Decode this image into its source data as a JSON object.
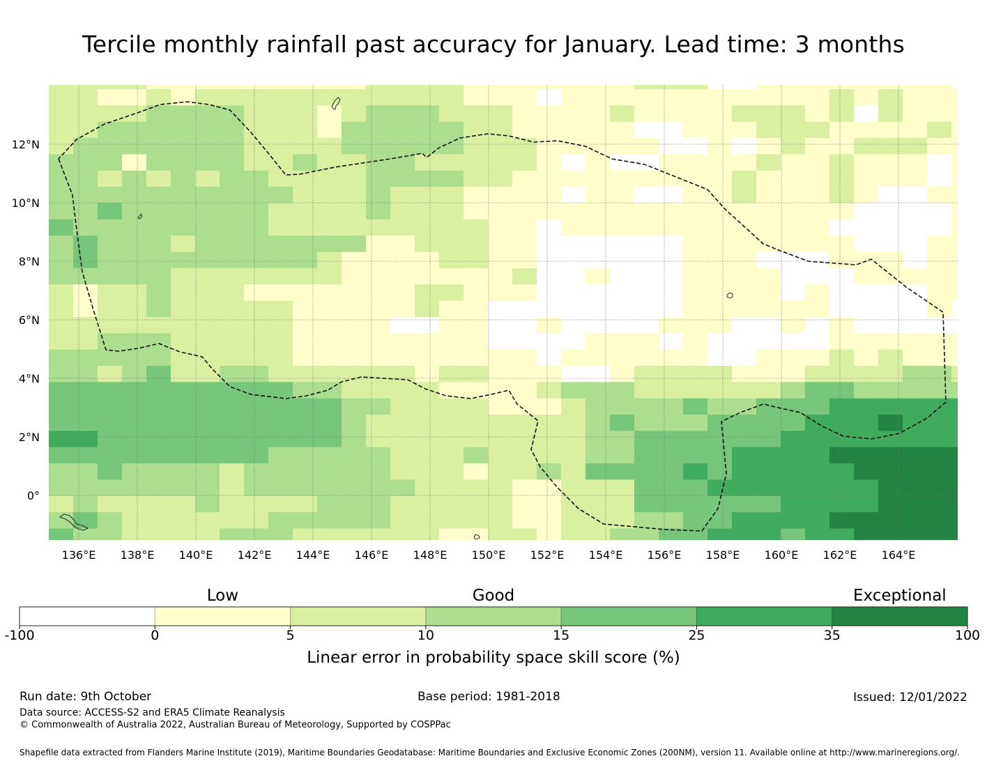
{
  "title": "Tercile monthly rainfall past accuracy for January. Lead time: 3 months",
  "chart_data": {
    "type": "heatmap",
    "title": "Tercile monthly rainfall past accuracy for January. Lead time: 3 months",
    "xlabel": "",
    "ylabel": "",
    "x_ticks": [
      "136°E",
      "138°E",
      "140°E",
      "142°E",
      "144°E",
      "146°E",
      "148°E",
      "150°E",
      "152°E",
      "154°E",
      "156°E",
      "158°E",
      "160°E",
      "162°E",
      "164°E"
    ],
    "y_ticks": [
      "12°N",
      "10°N",
      "8°N",
      "6°N",
      "4°N",
      "2°N",
      "0°"
    ],
    "lon_range": [
      135.0,
      166.0
    ],
    "lat_range": [
      -1.5,
      14.0
    ],
    "colorbar": {
      "title": "Linear error in probability space skill score (%)",
      "boundaries": [
        "-100",
        "0",
        "5",
        "10",
        "15",
        "25",
        "35",
        "100"
      ],
      "colors": [
        "#ffffff",
        "#ffffcc",
        "#d9f0a3",
        "#addd8e",
        "#78c679",
        "#41ab5d",
        "#238443"
      ],
      "category_labels": [
        {
          "text": "Low",
          "at_bin": 1
        },
        {
          "text": "Good",
          "at_bin": 3
        },
        {
          "text": "Exceptional",
          "at_bin": 6
        }
      ]
    },
    "grid_note": "Values are colorbar bin indices 0-6 (0: <0, 1: 0-5, 2: 5-10, 3: 10-15, 4: 15-25, 5: 25-35, 6: 35-100); rows top (north) to bottom (south), columns west to east",
    "grid": [
      "22221111111112222111111122200111111110",
      "22112122222222222111011111111111212111",
      "22223333222123332221111211112221202111",
      "22333333222133333221111100111222111121",
      "23333333222233333222111110010121122211",
      "33313333223223322222101001111211211101",
      "33232323322223333221111111112111211101",
      "33333333332223222111101100112111210011",
      "33433333322223222111111111111111100001",
      "43333333322222222211011111111111000001",
      "34333233333331122211000000111111100011",
      "34333333333211112211000000111000111011",
      "33333222222211111112001000111100011111",
      "21223222111111122111000000111101000011",
      "21223222221111121100000000111111000010",
      "22222222221111001100100001110010100000",
      "22333222221111111100001110100000111111",
      "33333222221111111111011111100111212111",
      "33234223322222212211100122221112222332",
      "44444444443322221111233322222234433333",
      "44444444444433222211123333433444555555",
      "44444444444432222222223433344445556555",
      "55444444444432222222223344444455555555",
      "44444444433333222322223344445555666666",
      "33433332333333222122324444545555566666",
      "33333332333333322221122244455555556666",
      "23222232222333222221122244444455556666",
      "34322222233333222221122233445555666666",
      "43322223332222221122122334455545566666"
    ]
  },
  "footer": {
    "run_date": "Run date: 9th October",
    "base_period": "Base period: 1981-2018",
    "issued": "Issued: 12/01/2022",
    "data_source": "Data source: ACCESS-S2 and ERA5 Climate Reanalysis",
    "copyright": "© Commonwealth of Australia 2022, Australian Bureau of Meteorology, Supported by COSPPac",
    "shapefile_credit": "Shapefile data extracted from Flanders Marine Institute (2019), Maritime Boundaries Geodatabase: Maritime Boundaries and Exclusive Economic Zones (200NM), version 11. Available online at http://www.marineregions.org/."
  }
}
